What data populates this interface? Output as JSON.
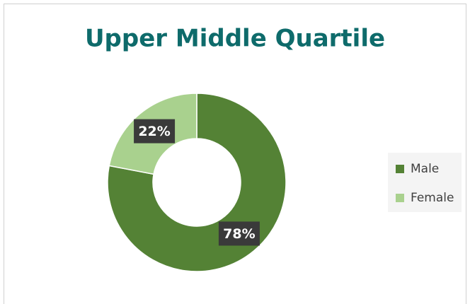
{
  "chart_data": {
    "type": "donut",
    "title": "Upper Middle Quartile",
    "categories": [
      "Male",
      "Female"
    ],
    "values": [
      78,
      22
    ],
    "value_labels": [
      "78%",
      "22%"
    ],
    "colors": [
      "#548235",
      "#a9d18e"
    ],
    "legend": "right"
  }
}
